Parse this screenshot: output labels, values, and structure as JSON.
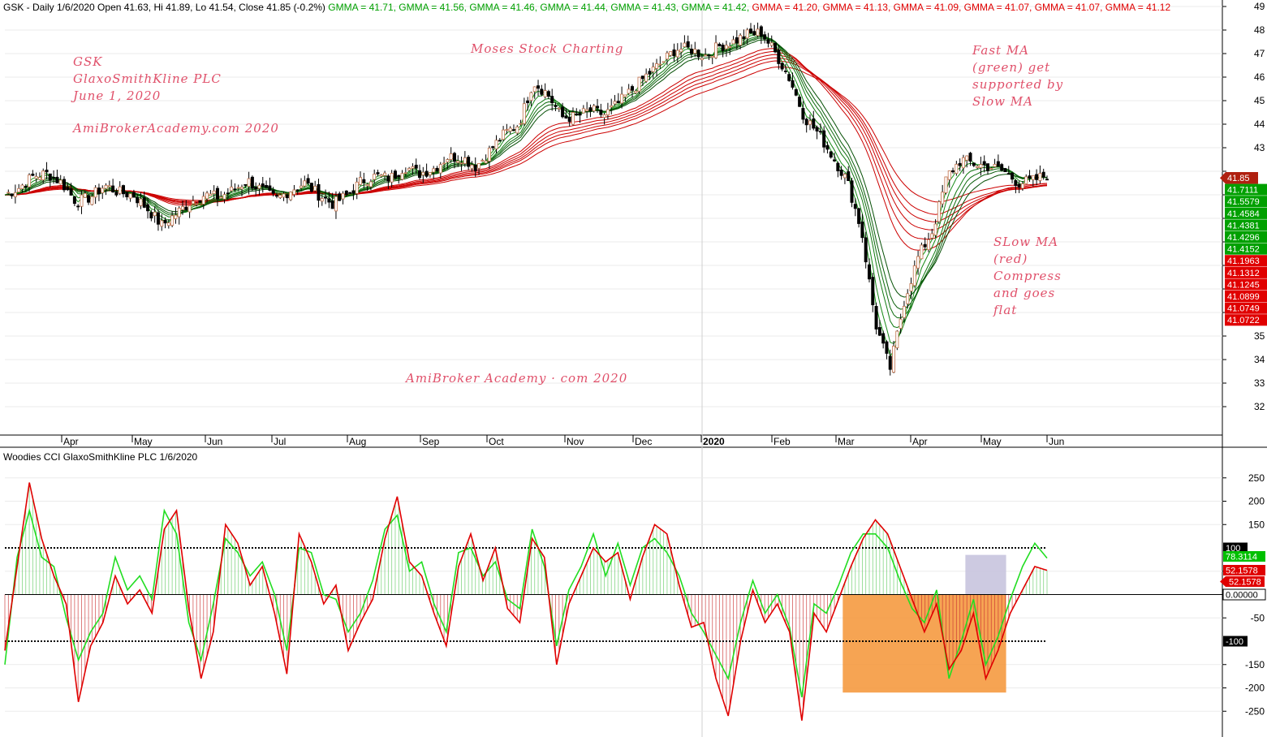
{
  "header": {
    "prefix": "GSK - Daily 1/6/2020 Open 41.63, Hi 41.89, Lo 41.54, Close 41.85 (-0.2%)",
    "gmma": [
      {
        "text": "GMMA = 41.71,",
        "color": "#00a000"
      },
      {
        "text": "GMMA = 41.56,",
        "color": "#00a000"
      },
      {
        "text": "GMMA = 41.46,",
        "color": "#00a000"
      },
      {
        "text": "GMMA = 41.44,",
        "color": "#00a000"
      },
      {
        "text": "GMMA = 41.43,",
        "color": "#00a000"
      },
      {
        "text": "GMMA = 41.42,",
        "color": "#00a000"
      },
      {
        "text": "GMMA = 41.20,",
        "color": "#e00000"
      },
      {
        "text": "GMMA = 41.13,",
        "color": "#e00000"
      },
      {
        "text": "GMMA = 41.09,",
        "color": "#e00000"
      },
      {
        "text": "GMMA = 41.07,",
        "color": "#e00000"
      },
      {
        "text": "GMMA = 41.07,",
        "color": "#e00000"
      },
      {
        "text": "GMMA = 41.12",
        "color": "#e00000"
      }
    ]
  },
  "annotations": {
    "company": [
      "GSK",
      "GlaxoSmithKline PLC",
      "June 1, 2020"
    ],
    "site": "AmiBrokerAcademy.com  2020",
    "moses": "Moses Stock Charting",
    "fast_ma": [
      "Fast MA",
      "(green) get",
      "supported by",
      "Slow MA"
    ],
    "slow_ma": [
      "SLow MA",
      "(red)",
      "Compress",
      "and goes",
      "flat"
    ],
    "site_bottom": "AmiBroker Academy · com  2020"
  },
  "cci_header": "Woodies CCI  GlaxoSmithKline PLC 1/6/2020",
  "chart_data": [
    {
      "type": "candlestick",
      "title": "GSK - Daily",
      "ylim": [
        31,
        49
      ],
      "y_ticks": [
        32,
        33,
        34,
        35,
        36,
        37,
        38,
        39,
        40,
        41,
        42,
        43,
        44,
        45,
        46,
        47,
        48,
        49
      ],
      "y_tick_labels": [
        "32",
        "33",
        "34",
        "35",
        "",
        "",
        "",
        "",
        "",
        "",
        "",
        "43",
        "44",
        "45",
        "46",
        "47",
        "48",
        "49"
      ],
      "x_labels": [
        "Apr",
        "May",
        "Jun",
        "Jul",
        "Aug",
        "Sep",
        "Oct",
        "Nov",
        "Dec",
        "2020",
        "Feb",
        "Mar",
        "Apr",
        "May",
        "Jun"
      ],
      "close_path": [
        41.0,
        41.3,
        41.8,
        41.9,
        41.5,
        40.7,
        40.9,
        41.4,
        41.1,
        41.0,
        40.4,
        39.7,
        40.2,
        40.7,
        41.0,
        40.9,
        41.2,
        41.6,
        41.2,
        40.8,
        41.2,
        41.5,
        41.0,
        40.6,
        41.0,
        41.6,
        41.8,
        41.7,
        42.2,
        41.9,
        42.1,
        42.6,
        42.6,
        42.2,
        42.9,
        43.6,
        44.0,
        45.8,
        45.3,
        44.3,
        44.3,
        44.6,
        44.4,
        44.9,
        45.5,
        46.1,
        46.6,
        47.2,
        47.2,
        46.9,
        47.3,
        47.5,
        47.8,
        47.9,
        47.0,
        45.9,
        44.3,
        43.6,
        42.6,
        41.6,
        39.5,
        35.5,
        33.6,
        36.5,
        38.4,
        39.5,
        41.8,
        42.5,
        42.3,
        42.2,
        42.0,
        41.5,
        41.6,
        41.85
      ],
      "price_tags": [
        {
          "text": "41.85",
          "color": "#b02010"
        },
        {
          "text": "41.7111",
          "color": "#00a000"
        },
        {
          "text": "41.5579",
          "color": "#00a000"
        },
        {
          "text": "41.4584",
          "color": "#00a000"
        },
        {
          "text": "41.4381",
          "color": "#00a000"
        },
        {
          "text": "41.4296",
          "color": "#00a000"
        },
        {
          "text": "41.4152",
          "color": "#00a000"
        },
        {
          "text": "41.1963",
          "color": "#e00000"
        },
        {
          "text": "41.1312",
          "color": "#e00000"
        },
        {
          "text": "41.1245",
          "color": "#e00000"
        },
        {
          "text": "41.0899",
          "color": "#e00000"
        },
        {
          "text": "41.0749",
          "color": "#e00000"
        },
        {
          "text": "41.0722",
          "color": "#e00000"
        }
      ],
      "fast_ma_color": "#008800",
      "slow_ma_color": "#cc0000",
      "fast_ma_periods": [
        3,
        5,
        8,
        10,
        12,
        15
      ],
      "slow_ma_periods": [
        30,
        35,
        40,
        45,
        50,
        60
      ]
    },
    {
      "type": "line",
      "title": "Woodies CCI",
      "ylim": [
        -300,
        300
      ],
      "y_ticks": [
        250,
        200,
        150,
        50,
        -50,
        -150,
        -200,
        -250
      ],
      "level_tags": [
        {
          "value": 100,
          "text": "100",
          "color": "#000000"
        },
        {
          "value": 78.3114,
          "text": "78.3114",
          "color": "#00c000"
        },
        {
          "value": 52.1578,
          "text": "52.1578",
          "color": "#e00000"
        },
        {
          "value": 52.1578,
          "text": "52.1578",
          "color": "#e00000"
        },
        {
          "value": 0,
          "text": "0.00000",
          "color": "#ffffff"
        },
        {
          "value": -100,
          "text": "-100",
          "color": "#000000"
        }
      ],
      "cci_path": [
        -120,
        60,
        240,
        120,
        40,
        -20,
        -230,
        -110,
        -60,
        40,
        -20,
        10,
        -40,
        140,
        180,
        -30,
        -180,
        -80,
        150,
        110,
        20,
        60,
        -40,
        -170,
        130,
        70,
        -20,
        20,
        -120,
        -60,
        -10,
        120,
        210,
        70,
        40,
        -40,
        -110,
        60,
        130,
        30,
        100,
        -30,
        -60,
        120,
        80,
        -150,
        -20,
        40,
        100,
        70,
        90,
        -10,
        80,
        150,
        130,
        20,
        -70,
        -60,
        -180,
        -260,
        -100,
        10,
        -60,
        -20,
        -80,
        -270,
        -40,
        -80,
        -10,
        60,
        120,
        160,
        130,
        60,
        -10,
        -80,
        -20,
        -160,
        -120,
        -40,
        -180,
        -120,
        -40,
        10,
        60,
        52
      ],
      "trend_path": [
        -150,
        80,
        180,
        80,
        60,
        -50,
        -140,
        -80,
        -40,
        80,
        10,
        40,
        -10,
        180,
        130,
        -60,
        -140,
        -20,
        120,
        90,
        40,
        70,
        0,
        -120,
        100,
        90,
        0,
        -10,
        -80,
        -40,
        30,
        140,
        170,
        50,
        70,
        -20,
        -80,
        90,
        100,
        40,
        70,
        -10,
        -30,
        140,
        60,
        -110,
        10,
        60,
        130,
        40,
        110,
        20,
        100,
        120,
        90,
        40,
        -40,
        -80,
        -130,
        -180,
        -60,
        30,
        -40,
        0,
        -70,
        -220,
        -20,
        -40,
        20,
        90,
        130,
        130,
        100,
        30,
        -30,
        -60,
        10,
        -180,
        -100,
        -10,
        -150,
        -90,
        -10,
        60,
        110,
        78
      ],
      "cci_color": "#e00000",
      "trend_color": "#22dd22",
      "zones": [
        {
          "from_index": 69,
          "to_index": 81,
          "ymin": -210,
          "ymax": 0,
          "color": "#f59a40"
        },
        {
          "from_index": 79,
          "to_index": 81,
          "ymin": 0,
          "ymax": 85,
          "color": "#c8c4de"
        }
      ]
    }
  ]
}
